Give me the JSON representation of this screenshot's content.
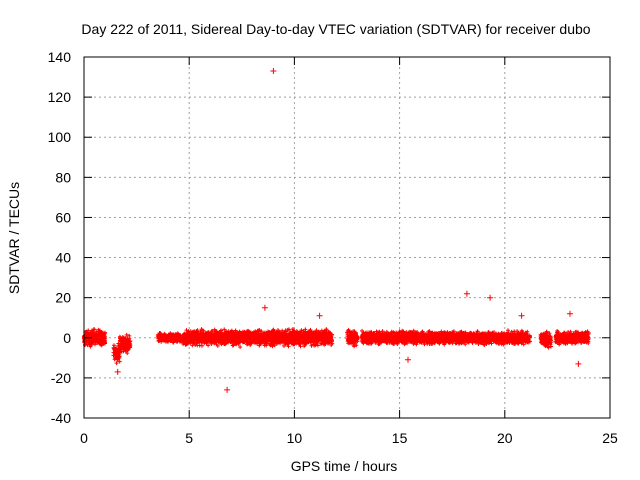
{
  "chart_data": {
    "type": "scatter",
    "title": "Day 222 of 2011, Sidereal Day-to-day VTEC variation (SDTVAR) for receiver dubo",
    "xlabel": "GPS time / hours",
    "ylabel": "SDTVAR / TECUs",
    "xlim": [
      0,
      25
    ],
    "ylim": [
      -40,
      140
    ],
    "x_ticks": [
      0,
      5,
      10,
      15,
      20,
      25
    ],
    "y_ticks": [
      -40,
      -20,
      0,
      20,
      40,
      60,
      80,
      100,
      120,
      140
    ],
    "grid": true,
    "marker": "+",
    "series_color": "#ff0000",
    "data_segments": [
      {
        "start": 0.0,
        "end": 1.0,
        "center": 0,
        "spread": 5
      },
      {
        "start": 1.4,
        "end": 1.7,
        "center": -8,
        "spread": 6
      },
      {
        "start": 1.7,
        "end": 2.2,
        "center": -3,
        "spread": 5
      },
      {
        "start": 3.5,
        "end": 4.6,
        "center": 0,
        "spread": 3
      },
      {
        "start": 4.7,
        "end": 11.8,
        "center": 0,
        "spread": 5
      },
      {
        "start": 12.5,
        "end": 13.0,
        "center": 0,
        "spread": 5
      },
      {
        "start": 13.2,
        "end": 17.0,
        "center": 0,
        "spread": 4
      },
      {
        "start": 17.0,
        "end": 21.2,
        "center": 0,
        "spread": 4
      },
      {
        "start": 21.7,
        "end": 22.2,
        "center": -1,
        "spread": 5
      },
      {
        "start": 22.4,
        "end": 24.0,
        "center": 0,
        "spread": 4
      }
    ],
    "outliers": [
      {
        "x": 9.0,
        "y": 133
      },
      {
        "x": 6.8,
        "y": -26
      },
      {
        "x": 19.3,
        "y": 20
      },
      {
        "x": 18.2,
        "y": 22
      },
      {
        "x": 8.6,
        "y": 15
      },
      {
        "x": 23.1,
        "y": 12
      },
      {
        "x": 11.2,
        "y": 11
      },
      {
        "x": 20.8,
        "y": 11
      },
      {
        "x": 1.6,
        "y": -17
      },
      {
        "x": 23.5,
        "y": -13
      },
      {
        "x": 15.4,
        "y": -11
      }
    ]
  }
}
